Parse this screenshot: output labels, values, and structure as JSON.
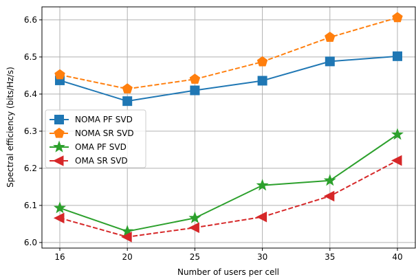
{
  "chart_data": {
    "type": "line",
    "x": [
      "16",
      "20",
      "25",
      "30",
      "35",
      "40"
    ],
    "xlabel": "Number of users per cell",
    "ylabel": "Spectral efficiency (bits/Hz/s)",
    "ylim": [
      5.985,
      6.635
    ],
    "yticks": [
      "6.0",
      "6.1",
      "6.2",
      "6.3",
      "6.4",
      "6.5",
      "6.6"
    ],
    "grid": true,
    "legend_position": "center-left",
    "series": [
      {
        "name": "NOMA PF SVD",
        "color": "#1f77b4",
        "marker": "square",
        "dash": false,
        "values": [
          6.437,
          6.381,
          6.41,
          6.436,
          6.488,
          6.502
        ]
      },
      {
        "name": "NOMA SR SVD",
        "color": "#ff7f0e",
        "marker": "pentagon",
        "dash": true,
        "values": [
          6.452,
          6.414,
          6.44,
          6.487,
          6.553,
          6.606
        ]
      },
      {
        "name": "OMA PF SVD",
        "color": "#2ca02c",
        "marker": "star",
        "dash": false,
        "values": [
          6.093,
          6.03,
          6.066,
          6.154,
          6.167,
          6.291
        ]
      },
      {
        "name": "OMA SR SVD",
        "color": "#d62728",
        "marker": "triangle-left",
        "dash": true,
        "values": [
          6.066,
          6.015,
          6.04,
          6.069,
          6.125,
          6.221
        ]
      }
    ]
  }
}
